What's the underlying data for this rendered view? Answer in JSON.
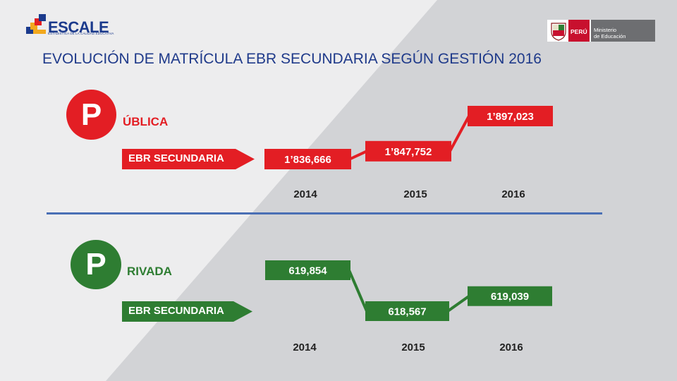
{
  "header": {
    "logo_text": "ESCALE",
    "logo_subtitle": "ESTADISTICA DE LA CALIDAD EDUCATIVA",
    "peru_label": "PERÚ",
    "ministry_line1": "Ministerio",
    "ministry_line2": "de Educación",
    "title": "EVOLUCIÓN DE MATRÍCULA EBR SECUNDARIA SEGÚN GESTIÓN 2016"
  },
  "colors": {
    "publica": "#e31e24",
    "privada": "#2e7d32",
    "title": "#1f3a8a",
    "divider": "#4a6fb5"
  },
  "chart_data": [
    {
      "type": "line",
      "sector_letter": "P",
      "sector_label": "ÚBLICA",
      "category_label": "EBR SECUNDARIA",
      "categories": [
        "2014",
        "2015",
        "2016"
      ],
      "values": [
        1836666,
        1847752,
        1897023
      ],
      "value_labels": [
        "1’836,666",
        "1’847,752",
        "1’897,023"
      ]
    },
    {
      "type": "line",
      "sector_letter": "P",
      "sector_label": "RIVADA",
      "category_label": "EBR SECUNDARIA",
      "categories": [
        "2014",
        "2015",
        "2016"
      ],
      "values": [
        619854,
        618567,
        619039
      ],
      "value_labels": [
        "619,854",
        "618,567",
        "619,039"
      ]
    }
  ]
}
